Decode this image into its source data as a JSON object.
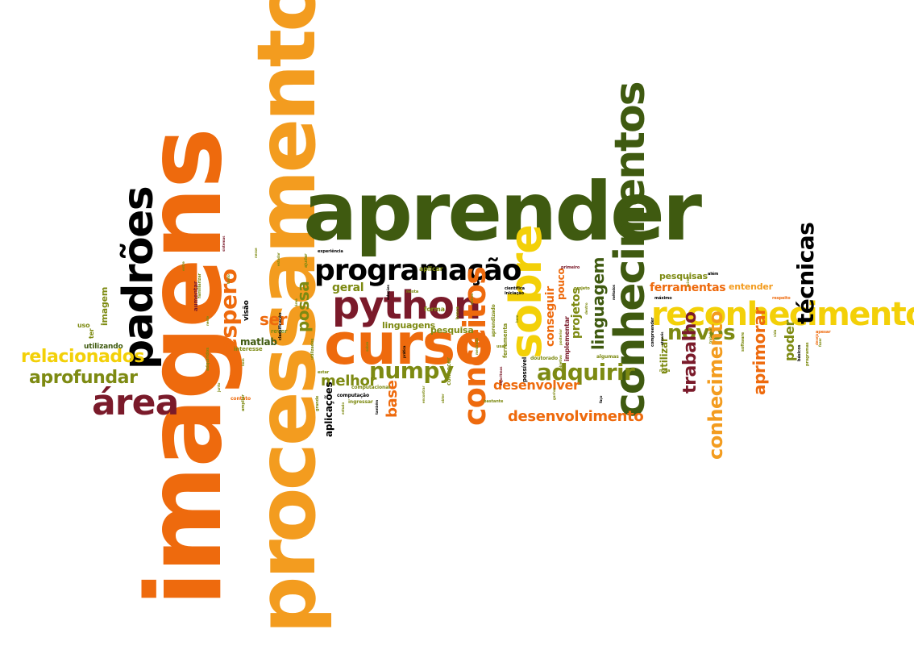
{
  "palette": {
    "orange": "#ee6a0d",
    "light_orange": "#f39c1f",
    "yellow": "#f3d008",
    "olive": "#7d8a12",
    "dark_green": "#3f5a10",
    "maroon": "#7a1a2a",
    "red_orange": "#e2451a"
  },
  "words": [
    {
      "id": "imagens",
      "text": "imagens",
      "weight": 1.0,
      "color": "orange",
      "orientation": "vertical"
    },
    {
      "id": "processamento",
      "text": "processamento",
      "weight": 0.98,
      "color": "light_orange",
      "orientation": "vertical"
    },
    {
      "id": "aprender",
      "text": "aprender",
      "weight": 0.7,
      "color": "dark_green",
      "orientation": "horizontal"
    },
    {
      "id": "conhecimentos",
      "text": "conhecimentos",
      "weight": 0.55,
      "color": "dark_green",
      "orientation": "vertical"
    },
    {
      "id": "curso",
      "text": "curso",
      "weight": 0.5,
      "color": "orange",
      "orientation": "horizontal"
    },
    {
      "id": "python",
      "text": "python",
      "weight": 0.45,
      "color": "maroon",
      "orientation": "horizontal"
    },
    {
      "id": "padroes",
      "text": "padrões",
      "weight": 0.42,
      "color": "olive",
      "orientation": "vertical"
    },
    {
      "id": "sobre",
      "text": "sobre",
      "weight": 0.42,
      "color": "yellow",
      "orientation": "vertical"
    },
    {
      "id": "reconhecimento-h",
      "text": "reconhecimento",
      "weight": 0.4,
      "color": "yellow",
      "orientation": "horizontal"
    },
    {
      "id": "programacao",
      "text": "programação",
      "weight": 0.38,
      "color": "olive",
      "orientation": "horizontal"
    },
    {
      "id": "area",
      "text": "área",
      "weight": 0.36,
      "color": "maroon",
      "orientation": "horizontal"
    },
    {
      "id": "conceitos",
      "text": "conceitos",
      "weight": 0.32,
      "color": "orange",
      "orientation": "vertical"
    },
    {
      "id": "espero",
      "text": "espero",
      "weight": 0.3,
      "color": "orange",
      "orientation": "vertical"
    },
    {
      "id": "numpy",
      "text": "numpy",
      "weight": 0.28,
      "color": "olive",
      "orientation": "horizontal"
    },
    {
      "id": "adquirir",
      "text": "adquirir",
      "weight": 0.26,
      "color": "olive",
      "orientation": "horizontal"
    },
    {
      "id": "tecnicas",
      "text": "técnicas",
      "weight": 0.25,
      "color": "red_orange",
      "orientation": "vertical"
    },
    {
      "id": "novos",
      "text": "novos",
      "weight": 0.24,
      "color": "olive",
      "orientation": "horizontal"
    },
    {
      "id": "conhecimento-v",
      "text": "conhecimento",
      "weight": 0.24,
      "color": "light_orange",
      "orientation": "vertical"
    },
    {
      "id": "trabalho",
      "text": "trabalho",
      "weight": 0.22,
      "color": "maroon",
      "orientation": "vertical"
    },
    {
      "id": "aprimorar",
      "text": "aprimorar",
      "weight": 0.21,
      "color": "orange",
      "orientation": "vertical"
    },
    {
      "id": "relacionados",
      "text": "relacionados",
      "weight": 0.23,
      "color": "yellow",
      "orientation": "horizontal"
    },
    {
      "id": "aprofundar",
      "text": "aprofundar",
      "weight": 0.22,
      "color": "olive",
      "orientation": "horizontal"
    },
    {
      "id": "desenvolvimento",
      "text": "desenvolvimento",
      "weight": 0.21,
      "color": "orange",
      "orientation": "horizontal"
    },
    {
      "id": "desenvolver",
      "text": "desenvolver",
      "weight": 0.18,
      "color": "orange",
      "orientation": "horizontal"
    },
    {
      "id": "melhor",
      "text": "melhor",
      "weight": 0.19,
      "color": "olive",
      "orientation": "horizontal"
    },
    {
      "id": "linguagem",
      "text": "linguagem",
      "weight": 0.2,
      "color": "dark_green",
      "orientation": "vertical"
    },
    {
      "id": "base",
      "text": "base",
      "weight": 0.18,
      "color": "orange",
      "orientation": "vertical"
    },
    {
      "id": "possa",
      "text": "possa",
      "weight": 0.18,
      "color": "olive",
      "orientation": "vertical"
    },
    {
      "id": "ser",
      "text": "ser",
      "weight": 0.16,
      "color": "orange",
      "orientation": "horizontal"
    },
    {
      "id": "ferramentas",
      "text": "ferramentas",
      "weight": 0.14,
      "color": "orange",
      "orientation": "horizontal"
    },
    {
      "id": "poder",
      "text": "poder",
      "weight": 0.16,
      "color": "olive",
      "orientation": "vertical"
    },
    {
      "id": "geral",
      "text": "geral",
      "weight": 0.14,
      "color": "olive",
      "orientation": "horizontal"
    },
    {
      "id": "projetos",
      "text": "projetos",
      "weight": 0.14,
      "color": "olive",
      "orientation": "vertical"
    },
    {
      "id": "conseguir",
      "text": "conseguir",
      "weight": 0.13,
      "color": "orange",
      "orientation": "vertical"
    },
    {
      "id": "linguagens",
      "text": "linguagens",
      "weight": 0.11,
      "color": "olive",
      "orientation": "horizontal"
    },
    {
      "id": "pesquisa",
      "text": "pesquisa",
      "weight": 0.11,
      "color": "olive",
      "orientation": "horizontal"
    },
    {
      "id": "matlab",
      "text": "matlab",
      "weight": 0.11,
      "color": "dark_green",
      "orientation": "horizontal"
    },
    {
      "id": "pesquisas",
      "text": "pesquisas",
      "weight": 0.11,
      "color": "olive",
      "orientation": "horizontal"
    },
    {
      "id": "utilizar",
      "text": "utilizar",
      "weight": 0.12,
      "color": "olive",
      "orientation": "vertical"
    },
    {
      "id": "aplicacoes",
      "text": "aplicações",
      "weight": 0.12,
      "color": "olive",
      "orientation": "vertical"
    },
    {
      "id": "pouco",
      "text": "pouco",
      "weight": 0.12,
      "color": "orange",
      "orientation": "vertical"
    },
    {
      "id": "entender",
      "text": "entender",
      "weight": 0.11,
      "color": "light_orange",
      "orientation": "horizontal"
    },
    {
      "id": "imagem",
      "text": "imagem",
      "weight": 0.1,
      "color": "olive",
      "orientation": "vertical"
    },
    {
      "id": "utilizando",
      "text": "utilizando",
      "weight": 0.09,
      "color": "dark_green",
      "orientation": "horizontal"
    },
    {
      "id": "aplicar",
      "text": "aplicar",
      "weight": 0.08,
      "color": "olive",
      "orientation": "horizontal"
    },
    {
      "id": "forma",
      "text": "forma",
      "weight": 0.08,
      "color": "olive",
      "orientation": "horizontal"
    },
    {
      "id": "uso",
      "text": "uso",
      "weight": 0.08,
      "color": "olive",
      "orientation": "horizontal"
    },
    {
      "id": "visao",
      "text": "visão",
      "weight": 0.09,
      "color": "olive",
      "orientation": "vertical"
    },
    {
      "id": "ter",
      "text": "ter",
      "weight": 0.08,
      "color": "olive",
      "orientation": "vertical"
    },
    {
      "id": "aumentar",
      "text": "aumentar",
      "weight": 0.07,
      "color": "maroon",
      "orientation": "vertical"
    },
    {
      "id": "interesse",
      "text": "interesse",
      "weight": 0.07,
      "color": "olive",
      "orientation": "horizontal"
    },
    {
      "id": "implementar",
      "text": "implementar",
      "weight": 0.08,
      "color": "maroon",
      "orientation": "vertical"
    },
    {
      "id": "ferramenta",
      "text": "ferramenta",
      "weight": 0.07,
      "color": "olive",
      "orientation": "vertical"
    },
    {
      "id": "possivel",
      "text": "possível",
      "weight": 0.07,
      "color": "olive",
      "orientation": "vertical"
    },
    {
      "id": "conhecer",
      "text": "conhecer",
      "weight": 0.07,
      "color": "olive",
      "orientation": "vertical"
    },
    {
      "id": "rever",
      "text": "rever",
      "weight": 0.06,
      "color": "olive",
      "orientation": "horizontal"
    },
    {
      "id": "contato",
      "text": "contato",
      "weight": 0.06,
      "color": "orange",
      "orientation": "horizontal"
    },
    {
      "id": "computacional",
      "text": "computacional",
      "weight": 0.06,
      "color": "olive",
      "orientation": "horizontal"
    },
    {
      "id": "computacao",
      "text": "computação",
      "weight": 0.06,
      "color": "olive",
      "orientation": "horizontal"
    },
    {
      "id": "ingressar",
      "text": "ingressar",
      "weight": 0.06,
      "color": "olive",
      "orientation": "horizontal"
    },
    {
      "id": "doutorado",
      "text": "doutorado",
      "weight": 0.06,
      "color": "olive",
      "orientation": "horizontal"
    },
    {
      "id": "algumas",
      "text": "algumas",
      "weight": 0.06,
      "color": "olive",
      "orientation": "horizontal"
    },
    {
      "id": "nova",
      "text": "nova",
      "weight": 0.05,
      "color": "olive",
      "orientation": "horizontal"
    },
    {
      "id": "bastante",
      "text": "bastante",
      "weight": 0.05,
      "color": "olive",
      "orientation": "horizontal"
    },
    {
      "id": "usar",
      "text": "usar",
      "weight": 0.05,
      "color": "olive",
      "orientation": "horizontal"
    },
    {
      "id": "aprendizado",
      "text": "aprendizado",
      "weight": 0.06,
      "color": "olive",
      "orientation": "vertical"
    },
    {
      "id": "estar",
      "text": "estar",
      "weight": 0.05,
      "color": "olive",
      "orientation": "horizontal"
    },
    {
      "id": "nesta",
      "text": "nesta",
      "weight": 0.05,
      "color": "olive",
      "orientation": "horizontal"
    },
    {
      "id": "busca",
      "text": "busca",
      "weight": 0.05,
      "color": "olive",
      "orientation": "vertical"
    },
    {
      "id": "cientifica",
      "text": "científica",
      "weight": 0.05,
      "color": "olive",
      "orientation": "horizontal"
    },
    {
      "id": "iniciacao",
      "text": "iniciação",
      "weight": 0.05,
      "color": "olive",
      "orientation": "horizontal"
    },
    {
      "id": "primeiro",
      "text": "primeiro",
      "weight": 0.05,
      "color": "maroon",
      "orientation": "horizontal"
    },
    {
      "id": "projeto",
      "text": "projeto",
      "weight": 0.05,
      "color": "olive",
      "orientation": "horizontal"
    },
    {
      "id": "maximo",
      "text": "máximo",
      "weight": 0.05,
      "color": "maroon",
      "orientation": "horizontal"
    },
    {
      "id": "respeito",
      "text": "respeito",
      "weight": 0.05,
      "color": "orange",
      "orientation": "horizontal"
    },
    {
      "id": "alem",
      "text": "além",
      "weight": 0.05,
      "color": "olive",
      "orientation": "horizontal"
    },
    {
      "id": "apesar",
      "text": "apesar",
      "weight": 0.05,
      "color": "orange",
      "orientation": "horizontal"
    },
    {
      "id": "software",
      "text": "software",
      "weight": 0.05,
      "color": "olive",
      "orientation": "vertical"
    },
    {
      "id": "programas",
      "text": "programas",
      "weight": 0.05,
      "color": "olive",
      "orientation": "vertical"
    },
    {
      "id": "basicos",
      "text": "básicos",
      "weight": 0.05,
      "color": "olive",
      "orientation": "vertical"
    },
    {
      "id": "experiencia",
      "text": "experiência",
      "weight": 0.05,
      "color": "maroon",
      "orientation": "horizontal"
    },
    {
      "id": "ajudar",
      "text": "ajudar",
      "weight": 0.05,
      "color": "olive",
      "orientation": "vertical"
    },
    {
      "id": "familiarizar",
      "text": "familiarizar",
      "weight": 0.05,
      "color": "olive",
      "orientation": "vertical"
    },
    {
      "id": "adquiridos",
      "text": "adquiridos",
      "weight": 0.05,
      "color": "olive",
      "orientation": "vertical"
    },
    {
      "id": "ampliar",
      "text": "ampliar",
      "weight": 0.05,
      "color": "olive",
      "orientation": "vertical"
    },
    {
      "id": "grande",
      "text": "grande",
      "weight": 0.05,
      "color": "olive",
      "orientation": "vertical"
    },
    {
      "id": "utilizados",
      "text": "utilizados",
      "weight": 0.05,
      "color": "olive",
      "orientation": "vertical"
    },
    {
      "id": "classificacao",
      "text": "classificação",
      "weight": 0.05,
      "color": "olive",
      "orientation": "vertical"
    },
    {
      "id": "comprender",
      "text": "compreender",
      "weight": 0.05,
      "color": "orange",
      "orientation": "vertical"
    },
    {
      "id": "sistemas",
      "text": "sistemas",
      "weight": 0.04,
      "color": "maroon",
      "orientation": "vertical"
    },
    {
      "id": "junto",
      "text": "junto",
      "weight": 0.04,
      "color": "olive",
      "orientation": "vertical"
    },
    {
      "id": "obter",
      "text": "obter",
      "weight": 0.04,
      "color": "olive",
      "orientation": "vertical"
    },
    {
      "id": "mestrado",
      "text": "mestrado",
      "weight": 0.04,
      "color": "olive",
      "orientation": "vertical"
    },
    {
      "id": "encontrar",
      "text": "encontrar",
      "weight": 0.04,
      "color": "olive",
      "orientation": "vertical"
    },
    {
      "id": "bom",
      "text": "bom",
      "weight": 0.04,
      "color": "olive",
      "orientation": "vertical"
    },
    {
      "id": "estudo",
      "text": "estudo",
      "weight": 0.04,
      "color": "olive",
      "orientation": "vertical"
    },
    {
      "id": "ganhar",
      "text": "ganhar",
      "weight": 0.04,
      "color": "olive",
      "orientation": "vertical"
    },
    {
      "id": "algoritmos",
      "text": "algoritmos",
      "weight": 0.04,
      "color": "maroon",
      "orientation": "vertical"
    },
    {
      "id": "objetivo",
      "text": "objetivo",
      "weight": 0.04,
      "color": "olive",
      "orientation": "vertical"
    },
    {
      "id": "posterior",
      "text": "posterior",
      "weight": 0.04,
      "color": "olive",
      "orientation": "vertical"
    },
    {
      "id": "atraves",
      "text": "através",
      "weight": 0.04,
      "color": "olive",
      "orientation": "vertical"
    },
    {
      "id": "desejo",
      "text": "desejo",
      "weight": 0.04,
      "color": "orange",
      "orientation": "vertical"
    },
    {
      "id": "fazer",
      "text": "fazer",
      "weight": 0.04,
      "color": "olive",
      "orientation": "vertical"
    },
    {
      "id": "area-v",
      "text": "área",
      "weight": 0.04,
      "color": "olive",
      "orientation": "vertical"
    },
    {
      "id": "nesse",
      "text": "nesse",
      "weight": 0.04,
      "color": "olive",
      "orientation": "vertical"
    },
    {
      "id": "neste",
      "text": "neste",
      "weight": 0.04,
      "color": "olive",
      "orientation": "vertical"
    },
    {
      "id": "entre",
      "text": "entre",
      "weight": 0.04,
      "color": "olive",
      "orientation": "vertical"
    },
    {
      "id": "estudar",
      "text": "estudar",
      "weight": 0.04,
      "color": "olive",
      "orientation": "vertical"
    },
    {
      "id": "tanto",
      "text": "tanto",
      "weight": 0.04,
      "color": "olive",
      "orientation": "vertical"
    },
    {
      "id": "solucoes",
      "text": "soluções",
      "weight": 0.04,
      "color": "olive",
      "orientation": "vertical"
    },
    {
      "id": "pratica",
      "text": "prática",
      "weight": 0.04,
      "color": "olive",
      "orientation": "vertical"
    },
    {
      "id": "bem",
      "text": "bem",
      "weight": 0.04,
      "color": "olive",
      "orientation": "vertical"
    },
    {
      "id": "metodos",
      "text": "métodos",
      "weight": 0.04,
      "color": "olive",
      "orientation": "vertical"
    },
    {
      "id": "acima",
      "text": "acima",
      "weight": 0.04,
      "color": "olive",
      "orientation": "vertical"
    },
    {
      "id": "trabalhar",
      "text": "trabalhar",
      "weight": 0.04,
      "color": "olive",
      "orientation": "vertical"
    },
    {
      "id": "sobre-s",
      "text": "sobre",
      "weight": 0.04,
      "color": "olive",
      "orientation": "vertical"
    },
    {
      "id": "tambem",
      "text": "também",
      "weight": 0.04,
      "color": "olive",
      "orientation": "vertical"
    },
    {
      "id": "outros",
      "text": "outros",
      "weight": 0.04,
      "color": "olive",
      "orientation": "vertical"
    },
    {
      "id": "vida",
      "text": "vida",
      "weight": 0.04,
      "color": "olive",
      "orientation": "vertical"
    },
    {
      "id": "dentro",
      "text": "dentro",
      "weight": 0.04,
      "color": "olive",
      "orientation": "vertical"
    },
    {
      "id": "faco",
      "text": "faço",
      "weight": 0.04,
      "color": "olive",
      "orientation": "vertical"
    }
  ]
}
